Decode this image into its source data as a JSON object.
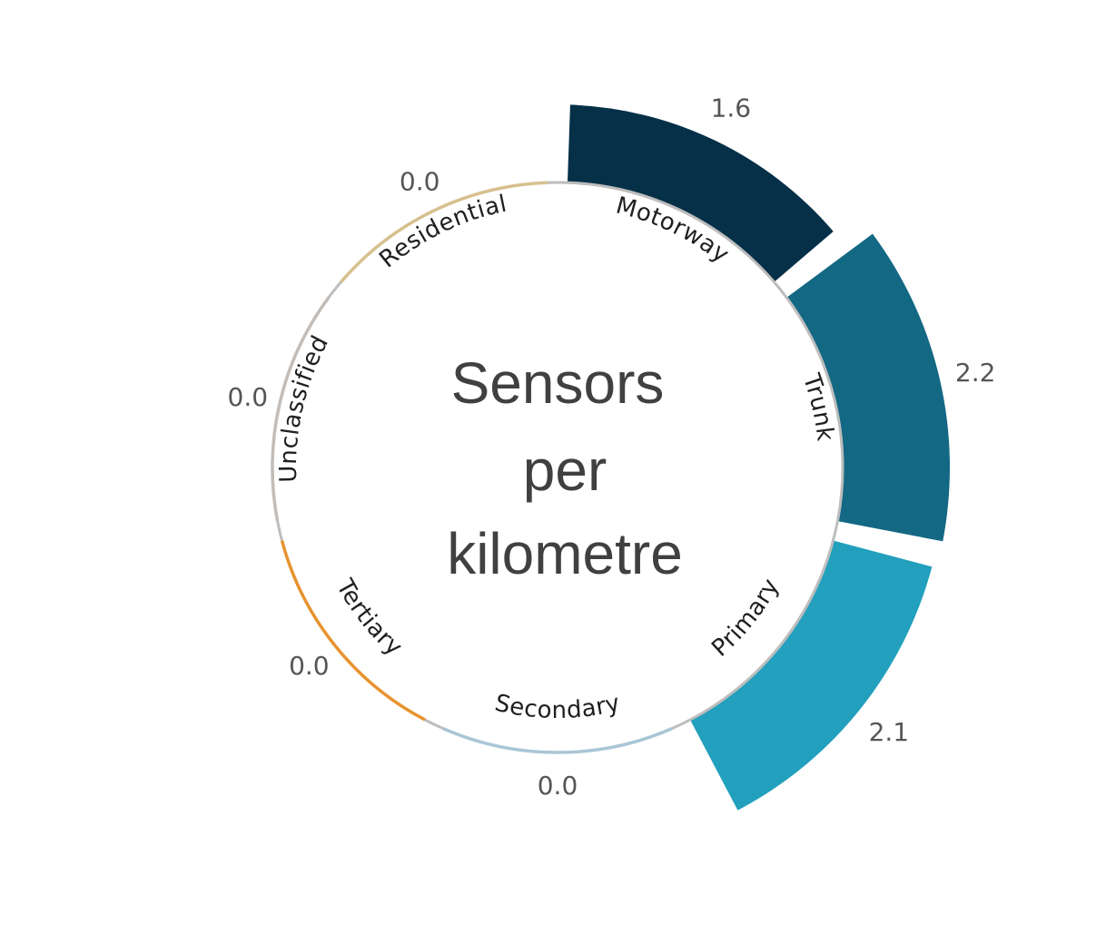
{
  "chart_data": {
    "type": "radial-bar",
    "title_lines": [
      "Sensors",
      "per",
      "kilometre"
    ],
    "categories": [
      "Motorway",
      "Trunk",
      "Primary",
      "Secondary",
      "Tertiary",
      "Unclassified",
      "Residential"
    ],
    "values": [
      1.6,
      2.2,
      2.1,
      0.0,
      0.0,
      0.0,
      0.0
    ],
    "value_labels": [
      "1.6",
      "2.2",
      "2.1",
      "0.0",
      "0.0",
      "0.0",
      "0.0"
    ],
    "colors": [
      "#053048",
      "#136884",
      "#22a0bd",
      "#a9c6d6",
      "#e7932f",
      "#c2bdb8",
      "#d7c08e"
    ]
  }
}
